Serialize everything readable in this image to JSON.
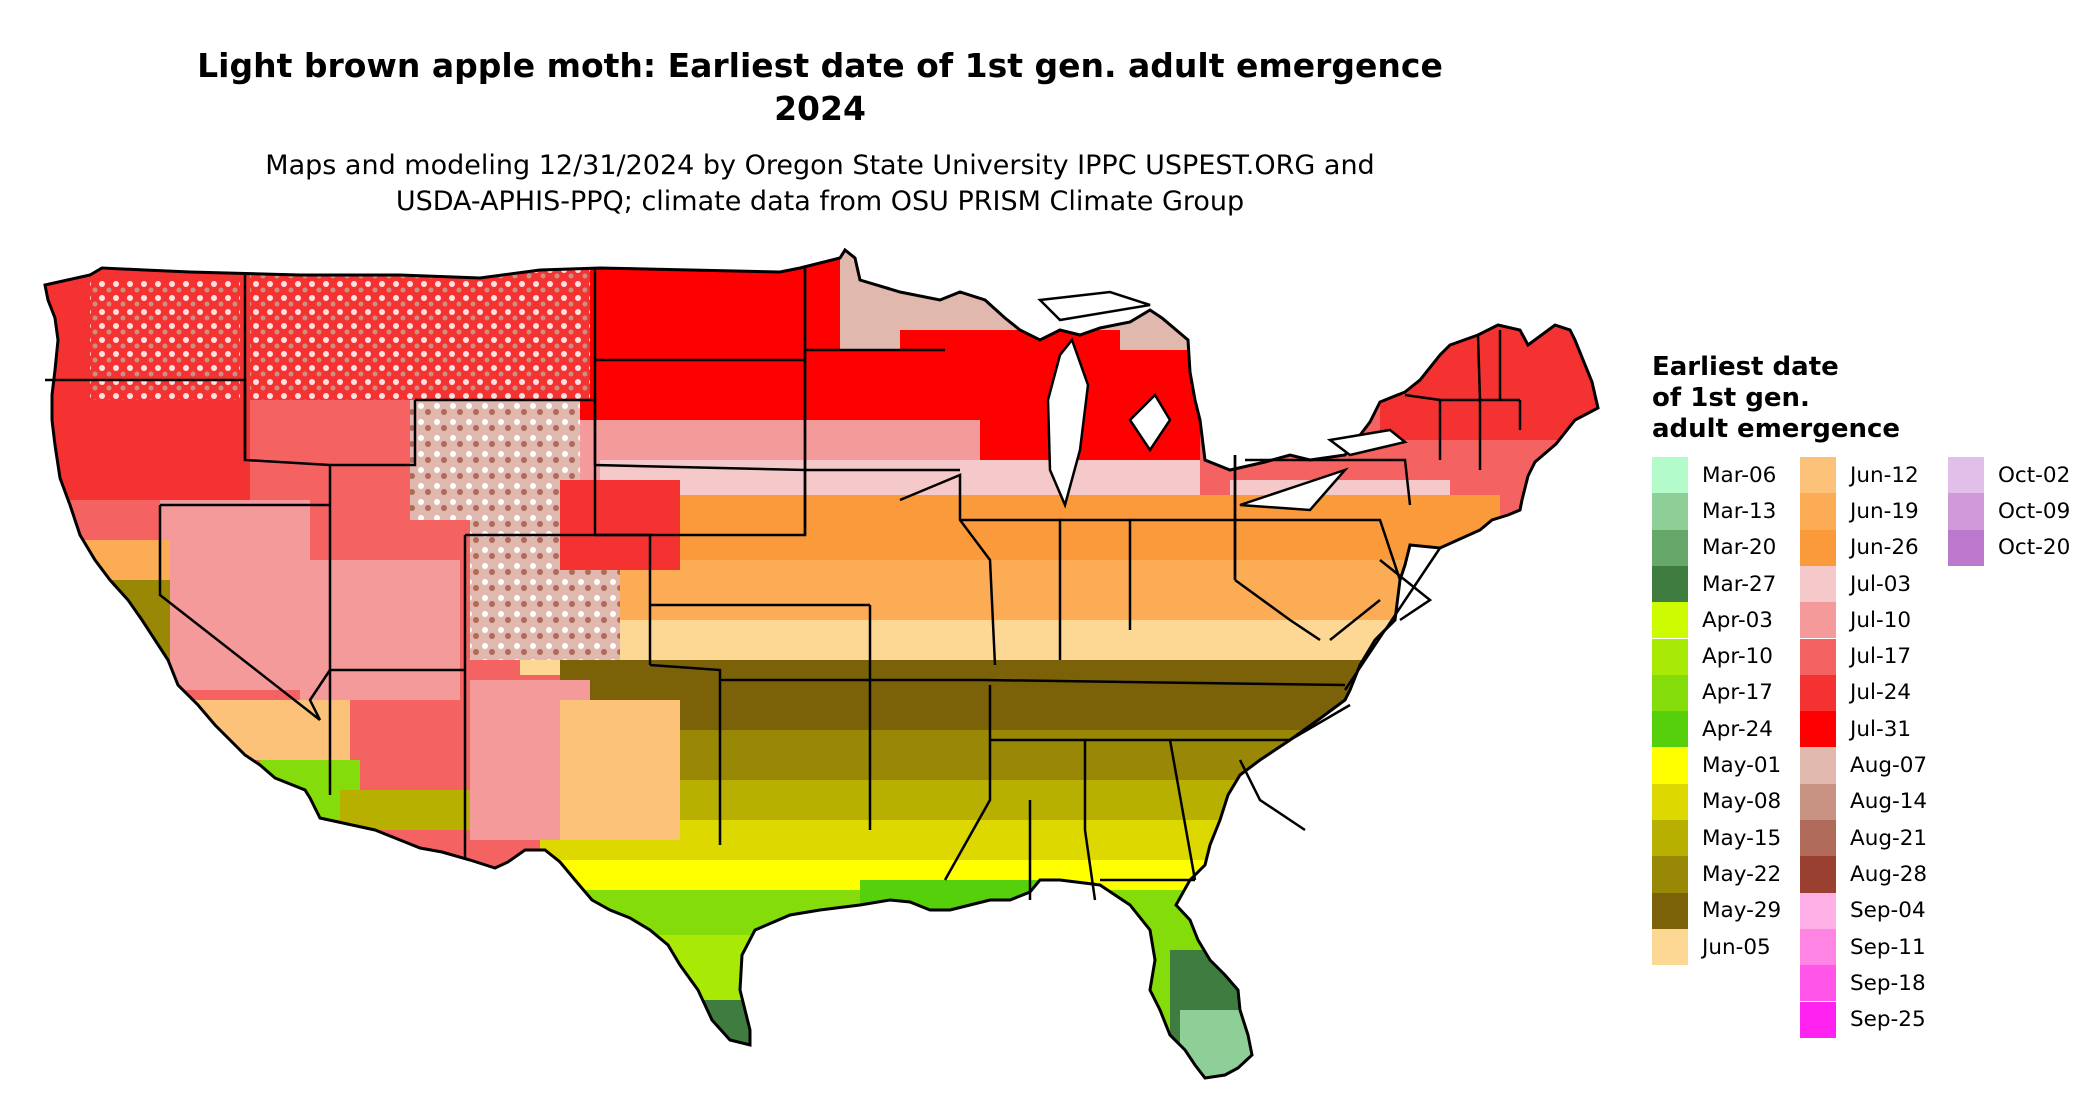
{
  "title_line1": "Light brown apple moth: Earliest date of 1st gen. adult emergence",
  "title_line2": "2024",
  "subtitle_line1": "Maps and modeling 12/31/2024 by Oregon State University IPPC USPEST.ORG and",
  "subtitle_line2": "USDA-APHIS-PPQ; climate data from OSU PRISM Climate Group",
  "legend": {
    "title_line1": "Earliest date",
    "title_line2": "of 1st gen.",
    "title_line3": "adult emergence",
    "items": [
      {
        "label": "Mar-06",
        "color": "#b4fbcb"
      },
      {
        "label": "Mar-13",
        "color": "#8ecf97"
      },
      {
        "label": "Mar-20",
        "color": "#65a86a"
      },
      {
        "label": "Mar-27",
        "color": "#3e7d3f"
      },
      {
        "label": "Apr-03",
        "color": "#cdfc00"
      },
      {
        "label": "Apr-10",
        "color": "#a8ea05"
      },
      {
        "label": "Apr-17",
        "color": "#84dc0a"
      },
      {
        "label": "Apr-24",
        "color": "#55d00b"
      },
      {
        "label": "May-01",
        "color": "#ffff00"
      },
      {
        "label": "May-08",
        "color": "#dcd800"
      },
      {
        "label": "May-15",
        "color": "#b8b000"
      },
      {
        "label": "May-22",
        "color": "#988805"
      },
      {
        "label": "May-29",
        "color": "#7b6208"
      },
      {
        "label": "Jun-05",
        "color": "#fdd894"
      },
      {
        "label": "Jun-12",
        "color": "#fdc27a"
      },
      {
        "label": "Jun-19",
        "color": "#fbac55"
      },
      {
        "label": "Jun-26",
        "color": "#fb9a3a"
      },
      {
        "label": "Jul-03",
        "color": "#f5c9c9"
      },
      {
        "label": "Jul-10",
        "color": "#f59a9a"
      },
      {
        "label": "Jul-17",
        "color": "#f56262"
      },
      {
        "label": "Jul-24",
        "color": "#f53232"
      },
      {
        "label": "Jul-31",
        "color": "#ff0000"
      },
      {
        "label": "Aug-07",
        "color": "#e0b8ae"
      },
      {
        "label": "Aug-14",
        "color": "#c89282"
      },
      {
        "label": "Aug-21",
        "color": "#b06a5a"
      },
      {
        "label": "Aug-28",
        "color": "#9a4030"
      },
      {
        "label": "Sep-04",
        "color": "#ffb0e6"
      },
      {
        "label": "Sep-11",
        "color": "#ff84e4"
      },
      {
        "label": "Sep-18",
        "color": "#ff55e8"
      },
      {
        "label": "Sep-25",
        "color": "#ff22f0"
      },
      {
        "label": "Oct-02",
        "color": "#e2bfe8"
      },
      {
        "label": "Oct-09",
        "color": "#d09ad8"
      },
      {
        "label": "Oct-20",
        "color": "#bc78cc"
      }
    ]
  }
}
